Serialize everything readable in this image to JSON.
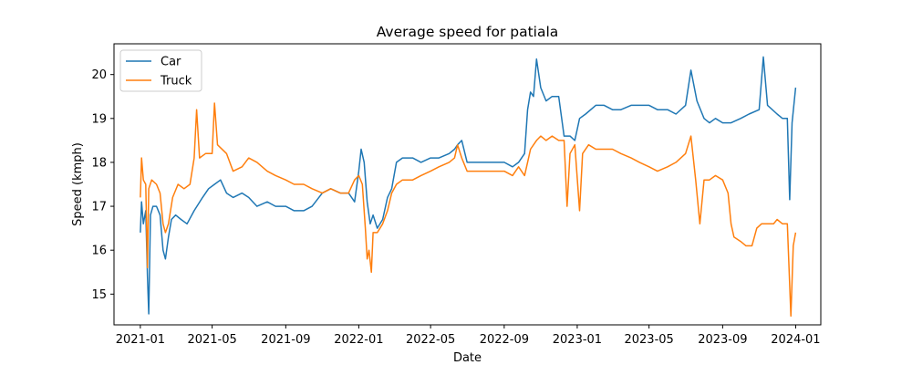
{
  "chart_data": {
    "type": "line",
    "title": "Average speed for patiala",
    "xlabel": "Date",
    "ylabel": "Speed (kmph)",
    "x_ticks": [
      "2021-01",
      "2021-05",
      "2021-09",
      "2022-01",
      "2022-05",
      "2022-09",
      "2023-01",
      "2023-05",
      "2023-09",
      "2024-01"
    ],
    "y_ticks": [
      "15",
      "16",
      "17",
      "18",
      "19",
      "20"
    ],
    "xlim": [
      "2020-11-18",
      "2024-02-12"
    ],
    "ylim": [
      14.3,
      20.7
    ],
    "grid": false,
    "legend_position": "upper left",
    "series": [
      {
        "name": "Car",
        "color": "#1f77b4",
        "points": [
          [
            "2021-01-01",
            16.4
          ],
          [
            "2021-01-03",
            17.1
          ],
          [
            "2021-01-06",
            16.6
          ],
          [
            "2021-01-10",
            16.9
          ],
          [
            "2021-01-13",
            15.4
          ],
          [
            "2021-01-15",
            14.55
          ],
          [
            "2021-01-18",
            16.8
          ],
          [
            "2021-01-22",
            17.0
          ],
          [
            "2021-01-28",
            17.0
          ],
          [
            "2021-02-03",
            16.8
          ],
          [
            "2021-02-08",
            16.0
          ],
          [
            "2021-02-12",
            15.8
          ],
          [
            "2021-02-17",
            16.3
          ],
          [
            "2021-02-22",
            16.7
          ],
          [
            "2021-03-01",
            16.8
          ],
          [
            "2021-03-10",
            16.7
          ],
          [
            "2021-03-20",
            16.6
          ],
          [
            "2021-04-01",
            16.9
          ],
          [
            "2021-04-15",
            17.2
          ],
          [
            "2021-04-25",
            17.4
          ],
          [
            "2021-05-05",
            17.5
          ],
          [
            "2021-05-15",
            17.6
          ],
          [
            "2021-05-25",
            17.3
          ],
          [
            "2021-06-05",
            17.2
          ],
          [
            "2021-06-20",
            17.3
          ],
          [
            "2021-07-01",
            17.2
          ],
          [
            "2021-07-15",
            17.0
          ],
          [
            "2021-08-01",
            17.1
          ],
          [
            "2021-08-15",
            17.0
          ],
          [
            "2021-09-01",
            17.0
          ],
          [
            "2021-09-15",
            16.9
          ],
          [
            "2021-10-01",
            16.9
          ],
          [
            "2021-10-15",
            17.0
          ],
          [
            "2021-11-01",
            17.3
          ],
          [
            "2021-11-15",
            17.4
          ],
          [
            "2021-12-01",
            17.3
          ],
          [
            "2021-12-15",
            17.3
          ],
          [
            "2021-12-25",
            17.1
          ],
          [
            "2022-01-01",
            17.8
          ],
          [
            "2022-01-05",
            18.3
          ],
          [
            "2022-01-10",
            18.0
          ],
          [
            "2022-01-15",
            17.1
          ],
          [
            "2022-01-20",
            16.6
          ],
          [
            "2022-01-25",
            16.8
          ],
          [
            "2022-02-01",
            16.5
          ],
          [
            "2022-02-10",
            16.7
          ],
          [
            "2022-02-18",
            17.2
          ],
          [
            "2022-02-25",
            17.4
          ],
          [
            "2022-03-05",
            18.0
          ],
          [
            "2022-03-15",
            18.1
          ],
          [
            "2022-04-01",
            18.1
          ],
          [
            "2022-04-15",
            18.0
          ],
          [
            "2022-05-01",
            18.1
          ],
          [
            "2022-05-15",
            18.1
          ],
          [
            "2022-06-01",
            18.2
          ],
          [
            "2022-06-10",
            18.3
          ],
          [
            "2022-06-15",
            18.4
          ],
          [
            "2022-06-22",
            18.5
          ],
          [
            "2022-07-01",
            18.0
          ],
          [
            "2022-07-15",
            18.0
          ],
          [
            "2022-08-01",
            18.0
          ],
          [
            "2022-08-15",
            18.0
          ],
          [
            "2022-09-01",
            18.0
          ],
          [
            "2022-09-15",
            17.9
          ],
          [
            "2022-09-25",
            18.0
          ],
          [
            "2022-10-05",
            18.2
          ],
          [
            "2022-10-10",
            19.2
          ],
          [
            "2022-10-15",
            19.6
          ],
          [
            "2022-10-20",
            19.5
          ],
          [
            "2022-10-25",
            20.35
          ],
          [
            "2022-11-01",
            19.7
          ],
          [
            "2022-11-10",
            19.4
          ],
          [
            "2022-11-20",
            19.5
          ],
          [
            "2022-12-01",
            19.5
          ],
          [
            "2022-12-10",
            18.6
          ],
          [
            "2022-12-20",
            18.6
          ],
          [
            "2022-12-28",
            18.5
          ],
          [
            "2023-01-05",
            19.0
          ],
          [
            "2023-01-15",
            19.1
          ],
          [
            "2023-02-01",
            19.3
          ],
          [
            "2023-02-15",
            19.3
          ],
          [
            "2023-03-01",
            19.2
          ],
          [
            "2023-03-15",
            19.2
          ],
          [
            "2023-04-01",
            19.3
          ],
          [
            "2023-04-15",
            19.3
          ],
          [
            "2023-05-01",
            19.3
          ],
          [
            "2023-05-15",
            19.2
          ],
          [
            "2023-06-01",
            19.2
          ],
          [
            "2023-06-15",
            19.1
          ],
          [
            "2023-07-01",
            19.3
          ],
          [
            "2023-07-10",
            20.1
          ],
          [
            "2023-07-20",
            19.4
          ],
          [
            "2023-08-01",
            19.0
          ],
          [
            "2023-08-10",
            18.9
          ],
          [
            "2023-08-20",
            19.0
          ],
          [
            "2023-09-01",
            18.9
          ],
          [
            "2023-09-15",
            18.9
          ],
          [
            "2023-10-01",
            19.0
          ],
          [
            "2023-10-15",
            19.1
          ],
          [
            "2023-11-01",
            19.2
          ],
          [
            "2023-11-08",
            20.4
          ],
          [
            "2023-11-15",
            19.3
          ],
          [
            "2023-12-01",
            19.1
          ],
          [
            "2023-12-10",
            19.0
          ],
          [
            "2023-12-18",
            19.0
          ],
          [
            "2023-12-22",
            17.15
          ],
          [
            "2023-12-26",
            18.9
          ],
          [
            "2024-01-01",
            19.7
          ]
        ]
      },
      {
        "name": "Truck",
        "color": "#ff7f0e",
        "points": [
          [
            "2021-01-01",
            17.2
          ],
          [
            "2021-01-03",
            18.1
          ],
          [
            "2021-01-06",
            17.6
          ],
          [
            "2021-01-10",
            17.5
          ],
          [
            "2021-01-13",
            15.6
          ],
          [
            "2021-01-15",
            17.4
          ],
          [
            "2021-01-20",
            17.6
          ],
          [
            "2021-01-28",
            17.5
          ],
          [
            "2021-02-03",
            17.3
          ],
          [
            "2021-02-08",
            16.6
          ],
          [
            "2021-02-12",
            16.4
          ],
          [
            "2021-02-17",
            16.6
          ],
          [
            "2021-02-24",
            17.2
          ],
          [
            "2021-03-05",
            17.5
          ],
          [
            "2021-03-15",
            17.4
          ],
          [
            "2021-03-25",
            17.5
          ],
          [
            "2021-04-01",
            18.1
          ],
          [
            "2021-04-05",
            19.2
          ],
          [
            "2021-04-10",
            18.1
          ],
          [
            "2021-04-20",
            18.2
          ],
          [
            "2021-05-01",
            18.2
          ],
          [
            "2021-05-05",
            19.35
          ],
          [
            "2021-05-10",
            18.4
          ],
          [
            "2021-05-25",
            18.2
          ],
          [
            "2021-06-05",
            17.8
          ],
          [
            "2021-06-20",
            17.9
          ],
          [
            "2021-07-01",
            18.1
          ],
          [
            "2021-07-15",
            18.0
          ],
          [
            "2021-08-01",
            17.8
          ],
          [
            "2021-08-15",
            17.7
          ],
          [
            "2021-09-01",
            17.6
          ],
          [
            "2021-09-15",
            17.5
          ],
          [
            "2021-10-01",
            17.5
          ],
          [
            "2021-10-15",
            17.4
          ],
          [
            "2021-11-01",
            17.3
          ],
          [
            "2021-11-15",
            17.4
          ],
          [
            "2021-12-01",
            17.3
          ],
          [
            "2021-12-15",
            17.3
          ],
          [
            "2021-12-25",
            17.6
          ],
          [
            "2022-01-01",
            17.7
          ],
          [
            "2022-01-07",
            17.5
          ],
          [
            "2022-01-12",
            16.5
          ],
          [
            "2022-01-15",
            15.8
          ],
          [
            "2022-01-18",
            16.0
          ],
          [
            "2022-01-22",
            15.5
          ],
          [
            "2022-01-25",
            16.4
          ],
          [
            "2022-02-01",
            16.4
          ],
          [
            "2022-02-10",
            16.6
          ],
          [
            "2022-02-18",
            16.9
          ],
          [
            "2022-02-25",
            17.3
          ],
          [
            "2022-03-05",
            17.5
          ],
          [
            "2022-03-15",
            17.6
          ],
          [
            "2022-04-01",
            17.6
          ],
          [
            "2022-04-15",
            17.7
          ],
          [
            "2022-05-01",
            17.8
          ],
          [
            "2022-05-15",
            17.9
          ],
          [
            "2022-06-01",
            18.0
          ],
          [
            "2022-06-10",
            18.1
          ],
          [
            "2022-06-15",
            18.4
          ],
          [
            "2022-06-22",
            18.1
          ],
          [
            "2022-07-01",
            17.8
          ],
          [
            "2022-07-15",
            17.8
          ],
          [
            "2022-08-01",
            17.8
          ],
          [
            "2022-08-15",
            17.8
          ],
          [
            "2022-09-01",
            17.8
          ],
          [
            "2022-09-15",
            17.7
          ],
          [
            "2022-09-25",
            17.9
          ],
          [
            "2022-10-05",
            17.7
          ],
          [
            "2022-10-10",
            18.0
          ],
          [
            "2022-10-15",
            18.3
          ],
          [
            "2022-10-25",
            18.5
          ],
          [
            "2022-11-01",
            18.6
          ],
          [
            "2022-11-10",
            18.5
          ],
          [
            "2022-11-20",
            18.6
          ],
          [
            "2022-12-01",
            18.5
          ],
          [
            "2022-12-10",
            18.5
          ],
          [
            "2022-12-15",
            17.0
          ],
          [
            "2022-12-20",
            18.2
          ],
          [
            "2022-12-28",
            18.4
          ],
          [
            "2023-01-05",
            16.9
          ],
          [
            "2023-01-10",
            18.2
          ],
          [
            "2023-01-20",
            18.4
          ],
          [
            "2023-02-01",
            18.3
          ],
          [
            "2023-02-15",
            18.3
          ],
          [
            "2023-03-01",
            18.3
          ],
          [
            "2023-03-15",
            18.2
          ],
          [
            "2023-04-01",
            18.1
          ],
          [
            "2023-04-15",
            18.0
          ],
          [
            "2023-05-01",
            17.9
          ],
          [
            "2023-05-15",
            17.8
          ],
          [
            "2023-06-01",
            17.9
          ],
          [
            "2023-06-15",
            18.0
          ],
          [
            "2023-07-01",
            18.2
          ],
          [
            "2023-07-10",
            18.6
          ],
          [
            "2023-07-18",
            17.6
          ],
          [
            "2023-07-25",
            16.6
          ],
          [
            "2023-08-01",
            17.6
          ],
          [
            "2023-08-10",
            17.6
          ],
          [
            "2023-08-20",
            17.7
          ],
          [
            "2023-09-01",
            17.6
          ],
          [
            "2023-09-10",
            17.3
          ],
          [
            "2023-09-15",
            16.6
          ],
          [
            "2023-09-20",
            16.3
          ],
          [
            "2023-10-01",
            16.2
          ],
          [
            "2023-10-10",
            16.1
          ],
          [
            "2023-10-20",
            16.1
          ],
          [
            "2023-10-28",
            16.5
          ],
          [
            "2023-11-05",
            16.6
          ],
          [
            "2023-11-15",
            16.6
          ],
          [
            "2023-11-25",
            16.6
          ],
          [
            "2023-12-01",
            16.7
          ],
          [
            "2023-12-10",
            16.6
          ],
          [
            "2023-12-18",
            16.6
          ],
          [
            "2023-12-24",
            14.5
          ],
          [
            "2023-12-28",
            16.1
          ],
          [
            "2024-01-01",
            16.4
          ]
        ]
      }
    ]
  }
}
